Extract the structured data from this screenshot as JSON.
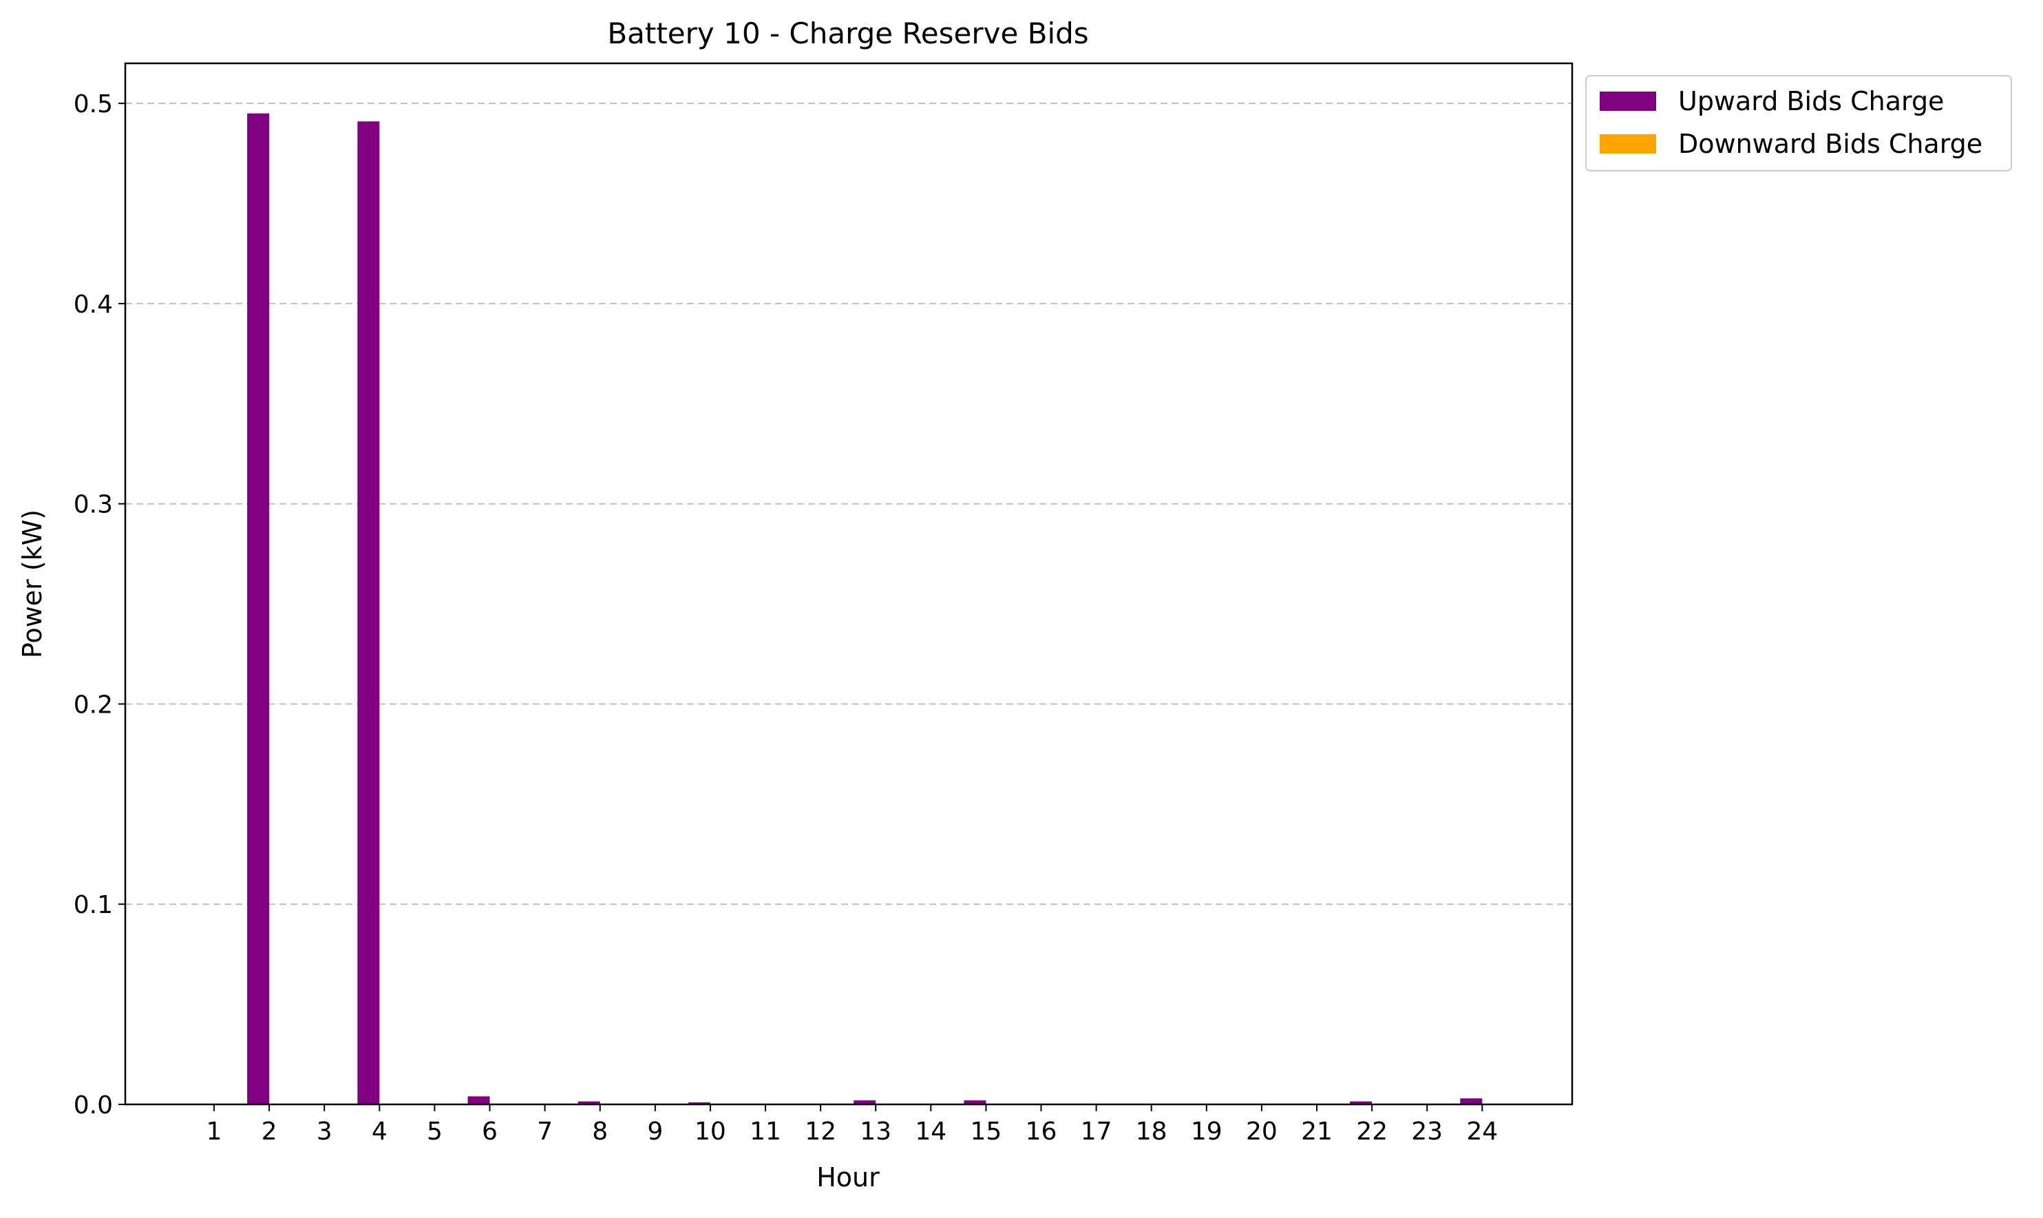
{
  "chart_data": {
    "type": "bar",
    "title": "Battery 10 - Charge Reserve Bids",
    "xlabel": "Hour",
    "ylabel": "Power (kW)",
    "categories": [
      "1",
      "2",
      "3",
      "4",
      "5",
      "6",
      "7",
      "8",
      "9",
      "10",
      "11",
      "12",
      "13",
      "14",
      "15",
      "16",
      "17",
      "18",
      "19",
      "20",
      "21",
      "22",
      "23",
      "24"
    ],
    "ylim": [
      0,
      0.52
    ],
    "yticks": [
      0.0,
      0.1,
      0.2,
      0.3,
      0.4,
      0.5
    ],
    "ytick_labels": [
      "0.0",
      "0.1",
      "0.2",
      "0.3",
      "0.4",
      "0.5"
    ],
    "grid": "y-dashed",
    "legend_position": "outside-top-right",
    "series": [
      {
        "name": "Upward Bids Charge",
        "color": "#800080",
        "values": [
          0,
          0.495,
          0,
          0.491,
          0,
          0.004,
          0,
          0.0015,
          0,
          0.001,
          0,
          0,
          0.002,
          0,
          0.002,
          0,
          0,
          0,
          0,
          0,
          0,
          0.0015,
          0,
          0.003
        ]
      },
      {
        "name": "Downward Bids Charge",
        "color": "#FFA500",
        "values": [
          0,
          0,
          0,
          0,
          0,
          0,
          0,
          0,
          0,
          0,
          0,
          0,
          0,
          0,
          0,
          0,
          0,
          0,
          0,
          0,
          0,
          0,
          0,
          0
        ]
      }
    ]
  }
}
